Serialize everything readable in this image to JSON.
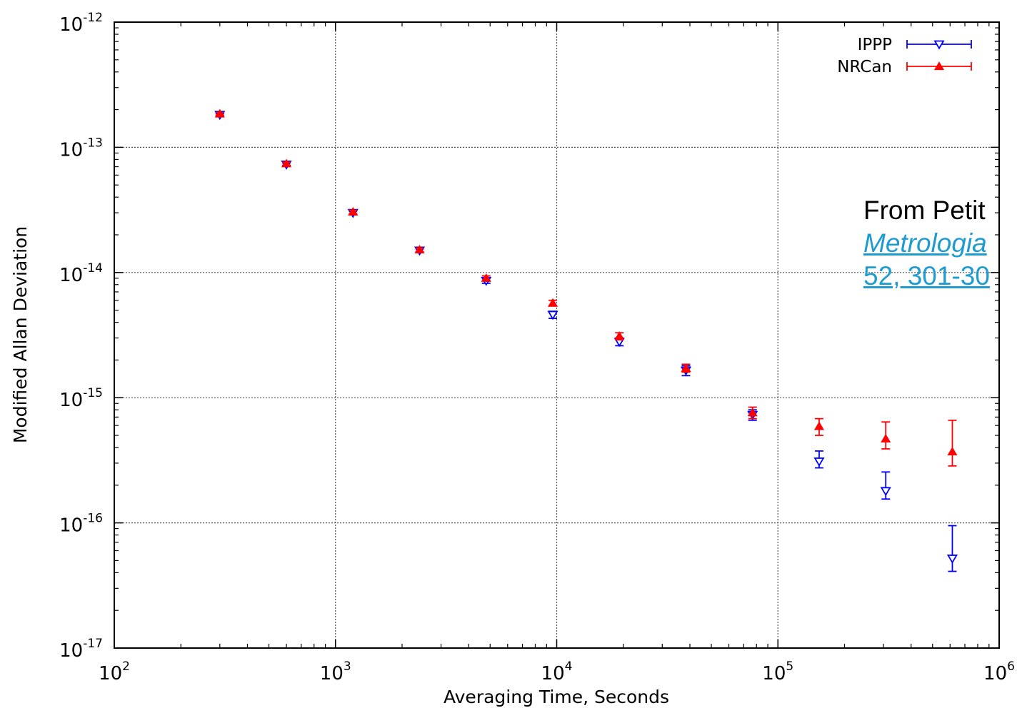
{
  "chart_data": {
    "type": "scatter",
    "title": "",
    "xlabel": "Averaging Time, Seconds",
    "ylabel": "Modified Allan Deviation",
    "xscale": "log",
    "yscale": "log",
    "xlim": [
      100,
      1000000
    ],
    "ylim": [
      1e-17,
      1e-12
    ],
    "grid": true,
    "legend_position": "top-right",
    "x_ticks": [
      {
        "base": "10",
        "exp": "2",
        "value": 100
      },
      {
        "base": "10",
        "exp": "3",
        "value": 1000
      },
      {
        "base": "10",
        "exp": "4",
        "value": 10000
      },
      {
        "base": "10",
        "exp": "5",
        "value": 100000
      },
      {
        "base": "10",
        "exp": "6",
        "value": 1000000
      }
    ],
    "y_ticks": [
      {
        "base": "10",
        "exp": "-12",
        "value": 1e-12
      },
      {
        "base": "10",
        "exp": "-13",
        "value": 1e-13
      },
      {
        "base": "10",
        "exp": "-14",
        "value": 1e-14
      },
      {
        "base": "10",
        "exp": "-15",
        "value": 1e-15
      },
      {
        "base": "10",
        "exp": "-16",
        "value": 1e-16
      },
      {
        "base": "10",
        "exp": "-17",
        "value": 1e-17
      }
    ],
    "series": [
      {
        "name": "IPPP",
        "color": "#0000ff",
        "marker": "triangle-down-open",
        "points": [
          {
            "x": 300,
            "y": 1.82e-13,
            "err": [
              1.78e-13,
              1.86e-13
            ]
          },
          {
            "x": 600,
            "y": 7.3e-14,
            "err": [
              7.1e-14,
              7.5e-14
            ]
          },
          {
            "x": 1200,
            "y": 3e-14,
            "err": [
              2.9e-14,
              3.1e-14
            ]
          },
          {
            "x": 2400,
            "y": 1.5e-14,
            "err": [
              1.45e-14,
              1.55e-14
            ]
          },
          {
            "x": 4800,
            "y": 8.6e-15,
            "err": [
              8.2e-15,
              9e-15
            ]
          },
          {
            "x": 9600,
            "y": 4.6e-15,
            "err": [
              4.3e-15,
              4.9e-15
            ]
          },
          {
            "x": 19200,
            "y": 2.8e-15,
            "err": [
              2.6e-15,
              3e-15
            ]
          },
          {
            "x": 38400,
            "y": 1.65e-15,
            "err": [
              1.5e-15,
              1.8e-15
            ]
          },
          {
            "x": 76800,
            "y": 7.3e-16,
            "err": [
              6.6e-16,
              8e-16
            ]
          },
          {
            "x": 153600,
            "y": 3.1e-16,
            "err": [
              2.75e-16,
              3.75e-16
            ]
          },
          {
            "x": 307200,
            "y": 1.8e-16,
            "err": [
              1.55e-16,
              2.55e-16
            ]
          },
          {
            "x": 614400,
            "y": 5.2e-17,
            "err": [
              4.1e-17,
              9.5e-17
            ]
          }
        ]
      },
      {
        "name": "NRCan",
        "color": "#ff0000",
        "marker": "triangle-up-filled",
        "points": [
          {
            "x": 300,
            "y": 1.85e-13,
            "err": [
              1.81e-13,
              1.89e-13
            ]
          },
          {
            "x": 600,
            "y": 7.4e-14,
            "err": [
              7.2e-14,
              7.6e-14
            ]
          },
          {
            "x": 1200,
            "y": 3.05e-14,
            "err": [
              2.95e-14,
              3.15e-14
            ]
          },
          {
            "x": 2400,
            "y": 1.52e-14,
            "err": [
              1.47e-14,
              1.57e-14
            ]
          },
          {
            "x": 4800,
            "y": 9e-15,
            "err": [
              8.6e-15,
              9.4e-15
            ]
          },
          {
            "x": 9600,
            "y": 5.7e-15,
            "err": [
              5.4e-15,
              6e-15
            ]
          },
          {
            "x": 19200,
            "y": 3.1e-15,
            "err": [
              2.9e-15,
              3.3e-15
            ]
          },
          {
            "x": 38400,
            "y": 1.72e-15,
            "err": [
              1.6e-15,
              1.85e-15
            ]
          },
          {
            "x": 76800,
            "y": 7.6e-16,
            "err": [
              6.8e-16,
              8.4e-16
            ]
          },
          {
            "x": 153600,
            "y": 5.9e-16,
            "err": [
              5e-16,
              6.8e-16
            ]
          },
          {
            "x": 307200,
            "y": 4.7e-16,
            "err": [
              3.9e-16,
              6.4e-16
            ]
          },
          {
            "x": 614400,
            "y": 3.7e-16,
            "err": [
              2.85e-16,
              6.6e-16
            ]
          }
        ]
      }
    ]
  },
  "citation": {
    "line1": "From Petit",
    "line2": "Metrologia",
    "line3": "52, 301-30"
  }
}
